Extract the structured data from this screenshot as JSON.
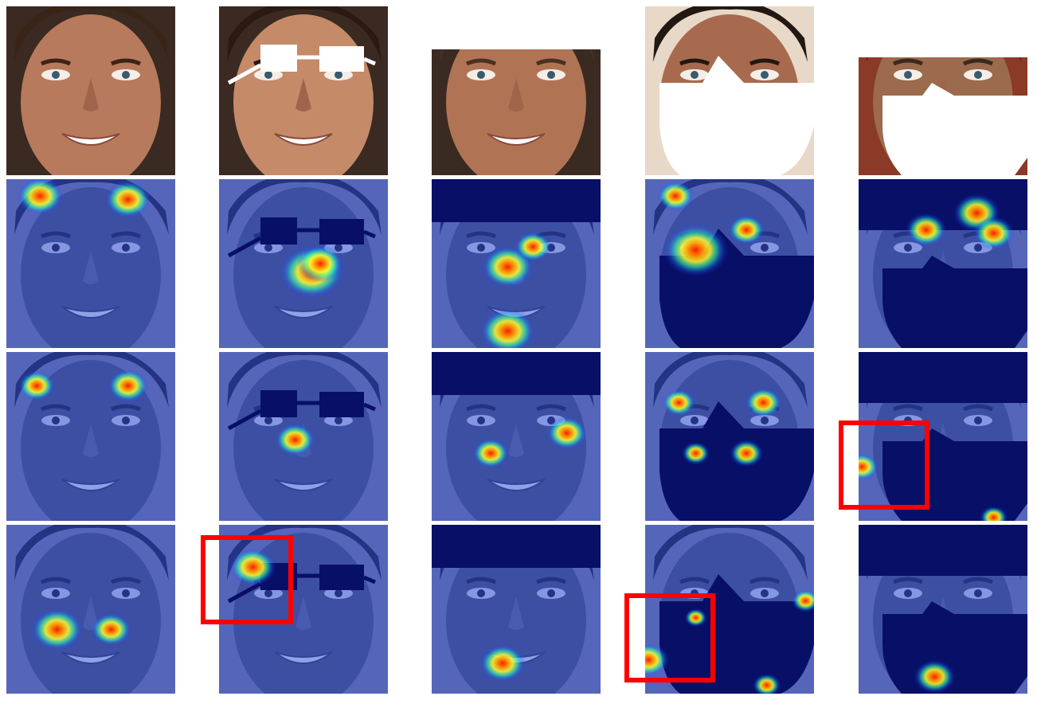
{
  "figure": {
    "rows": [
      {
        "row": "original",
        "cells": [
          {
            "face": "face-1",
            "occlusion": "none"
          },
          {
            "face": "face-2",
            "occlusion": "glasses"
          },
          {
            "face": "face-3",
            "occlusion": "forehead-bar"
          },
          {
            "face": "face-4",
            "occlusion": "mask"
          },
          {
            "face": "face-5",
            "occlusion": "forehead-bar-and-mask"
          }
        ]
      },
      {
        "row": "attention-map-a",
        "cells": [
          {
            "hotspots": [
              [
                0.2,
                0.1,
                0.25
              ],
              [
                0.72,
                0.12,
                0.25
              ]
            ]
          },
          {
            "hotspots": [
              [
                0.55,
                0.55,
                0.35
              ],
              [
                0.6,
                0.5,
                0.25
              ]
            ]
          },
          {
            "hotspots": [
              [
                0.45,
                0.52,
                0.28
              ],
              [
                0.6,
                0.4,
                0.2
              ],
              [
                0.45,
                0.9,
                0.3
              ]
            ]
          },
          {
            "hotspots": [
              [
                0.3,
                0.42,
                0.35
              ],
              [
                0.18,
                0.1,
                0.2
              ],
              [
                0.6,
                0.3,
                0.2
              ]
            ]
          },
          {
            "hotspots": [
              [
                0.4,
                0.3,
                0.22
              ],
              [
                0.7,
                0.2,
                0.25
              ],
              [
                0.8,
                0.32,
                0.22
              ]
            ]
          }
        ]
      },
      {
        "row": "attention-map-b",
        "cells": [
          {
            "hotspots": [
              [
                0.18,
                0.2,
                0.2
              ],
              [
                0.72,
                0.2,
                0.22
              ]
            ]
          },
          {
            "hotspots": [
              [
                0.45,
                0.52,
                0.22
              ]
            ]
          },
          {
            "hotspots": [
              [
                0.8,
                0.48,
                0.22
              ],
              [
                0.35,
                0.6,
                0.2
              ]
            ]
          },
          {
            "hotspots": [
              [
                0.2,
                0.3,
                0.18
              ],
              [
                0.7,
                0.3,
                0.2
              ],
              [
                0.3,
                0.6,
                0.15
              ],
              [
                0.6,
                0.6,
                0.18
              ]
            ]
          },
          {
            "hotspots": [
              [
                0.02,
                0.68,
                0.18
              ],
              [
                0.8,
                0.98,
                0.15
              ]
            ]
          }
        ]
      },
      {
        "row": "attention-map-c",
        "cells": [
          {
            "hotspots": [
              [
                0.3,
                0.62,
                0.28
              ],
              [
                0.62,
                0.62,
                0.22
              ]
            ]
          },
          {
            "hotspots": [
              [
                0.2,
                0.25,
                0.25
              ]
            ]
          },
          {
            "hotspots": [
              [
                0.42,
                0.82,
                0.25
              ]
            ]
          },
          {
            "hotspots": [
              [
                0.3,
                0.55,
                0.12
              ],
              [
                0.02,
                0.8,
                0.22
              ],
              [
                0.95,
                0.45,
                0.15
              ],
              [
                0.72,
                0.95,
                0.15
              ]
            ]
          },
          {
            "hotspots": [
              [
                0.45,
                0.9,
                0.22
              ]
            ]
          }
        ]
      }
    ],
    "highlights": [
      "row-3-col-5",
      "row-4-col-2",
      "row-4-col-4"
    ]
  }
}
